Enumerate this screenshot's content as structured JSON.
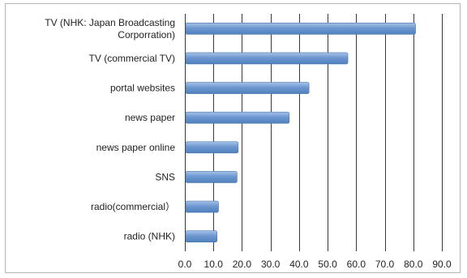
{
  "chart_data": {
    "type": "bar",
    "orientation": "horizontal",
    "title": "",
    "xlabel": "",
    "ylabel": "",
    "categories": [
      "TV (NHK: Japan Broadcasting Corporation)",
      "TV (commercial TV)",
      "portal websites",
      "news paper",
      "news paper online",
      "SNS",
      "radio(commercial）",
      "radio (NHK)"
    ],
    "category_lines": [
      [
        "TV (NHK: Japan Broadcasting",
        "Corporration)"
      ],
      [
        "TV (commercial TV)"
      ],
      [
        "portal websites"
      ],
      [
        "news paper"
      ],
      [
        "news paper online"
      ],
      [
        "SNS"
      ],
      [
        "radio(commercial）"
      ],
      [
        "radio (NHK)"
      ]
    ],
    "values": [
      80.5,
      56.8,
      43.2,
      36.3,
      18.4,
      18.0,
      11.5,
      11.0
    ],
    "xlim": [
      0,
      90
    ],
    "ticks": [
      "0.0",
      "10.0",
      "20.0",
      "30.0",
      "40.0",
      "50.0",
      "60.0",
      "70.0",
      "80.0",
      "90.0"
    ],
    "grid": "vertical",
    "legend": "none",
    "bar_color": "#4f81bd",
    "bar_highlight": "#a7c3e8"
  }
}
